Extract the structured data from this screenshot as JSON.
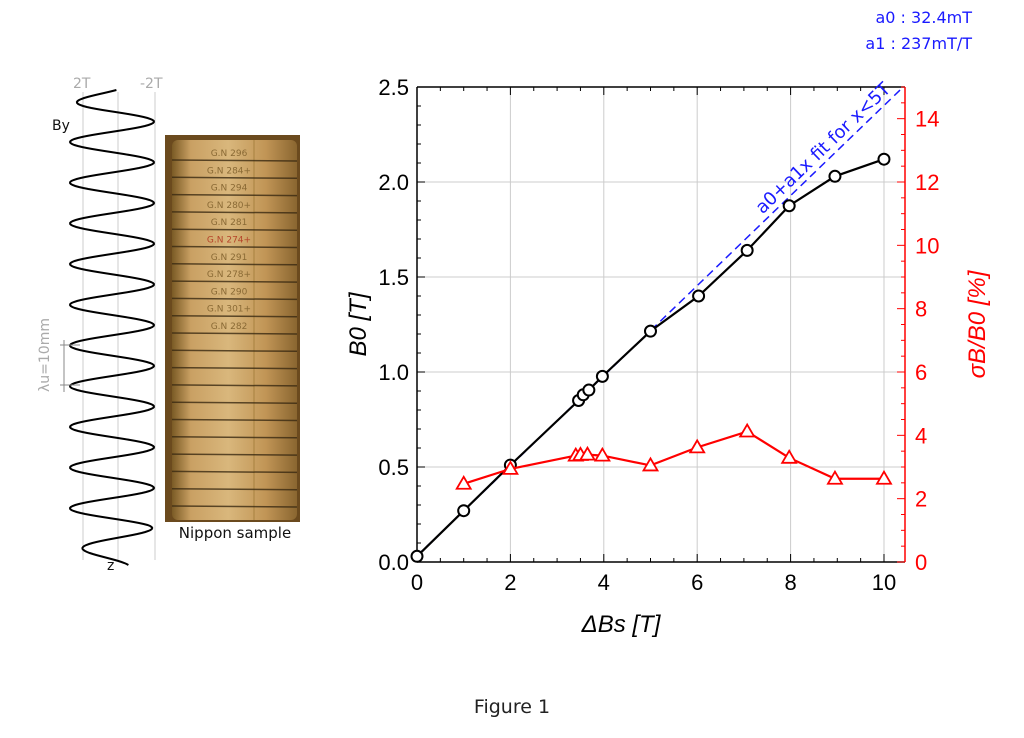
{
  "figure": {
    "caption": "Figure 1",
    "photo_caption": "Nippon sample",
    "photo_ring_labels": [
      "G.N 296",
      "G.N 284+",
      "G.N 294",
      "G.N 280+",
      "G.N 281",
      "G.N 274+",
      "G.N 291",
      "G.N 278+",
      "G.N 290",
      "G.N 301+",
      "G.N 282"
    ],
    "field_profile": {
      "label_by": "By",
      "label_z": "z",
      "label_pos": "2T",
      "label_neg": "-2T",
      "period_label": "λu=10mm"
    },
    "fit_info": {
      "a0": "a0 : 32.4mT",
      "a1": "a1 : 237mT/T"
    }
  },
  "chart_data": {
    "type": "line",
    "xlabel": "ΔBs [T]",
    "ylabel": "B0 [T]",
    "y2label": "σB/B0 [%]",
    "xlim": [
      0,
      10.45
    ],
    "ylim": [
      0,
      2.5
    ],
    "y2lim": [
      0,
      15
    ],
    "xticks": [
      0,
      2,
      4,
      6,
      8,
      10
    ],
    "yticks": [
      "0.0",
      "0.5",
      "1.0",
      "1.5",
      "2.0",
      "2.5"
    ],
    "y2ticks": [
      0,
      2,
      4,
      6,
      8,
      10,
      12,
      14
    ],
    "grid": true,
    "colors": {
      "b0": "#000000",
      "sigma": "#ff0000",
      "fit": "#1a1aff"
    },
    "series": [
      {
        "axis": "left",
        "marker": "circle",
        "x": [
          0,
          1.0,
          2.0,
          3.46,
          3.56,
          3.68,
          3.97,
          5.0,
          6.03,
          7.07,
          7.97,
          8.95,
          10.0
        ],
        "y": [
          0.03,
          0.27,
          0.51,
          0.85,
          0.88,
          0.905,
          0.977,
          1.215,
          1.4,
          1.64,
          1.875,
          2.03,
          2.12
        ]
      },
      {
        "axis": "right",
        "marker": "triangle",
        "x": [
          1.0,
          2.0,
          3.4,
          3.5,
          3.65,
          3.97,
          5.0,
          6.0,
          7.07,
          7.97,
          8.95,
          10.0
        ],
        "y": [
          2.47,
          2.94,
          3.36,
          3.38,
          3.39,
          3.36,
          3.05,
          3.62,
          4.12,
          3.29,
          2.63,
          2.63
        ]
      }
    ],
    "fit": {
      "label": "a0+a1x  fit for x<5T",
      "a0": 0.0324,
      "a1": 0.237,
      "style": "dashed"
    }
  }
}
